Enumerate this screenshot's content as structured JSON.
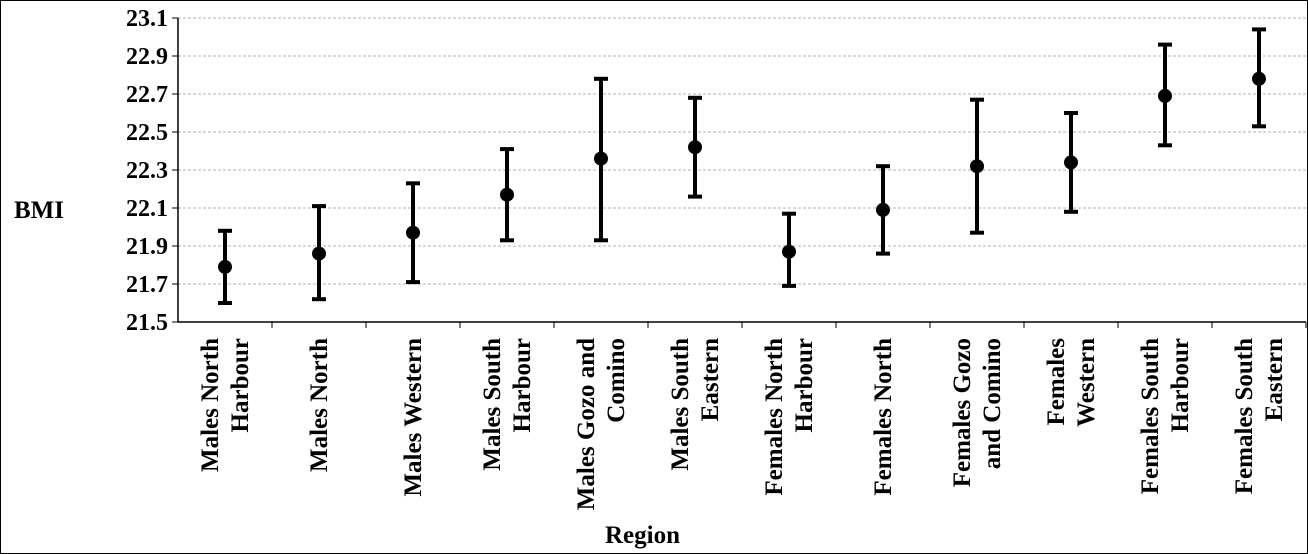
{
  "chart_data": {
    "type": "scatter",
    "subtype": "error-bar",
    "title": "",
    "xlabel": "Region",
    "ylabel": "BMI",
    "ylim": [
      21.5,
      23.1
    ],
    "yticks": [
      "21.5",
      "21.7",
      "21.9",
      "22.1",
      "22.3",
      "22.5",
      "22.7",
      "22.9",
      "23.1"
    ],
    "grid": true,
    "categories": [
      "Males North Harbour",
      "Males North",
      "Males Western",
      "Males South Harbour",
      "Males Gozo and Comino",
      "Males South Eastern",
      "Females North Harbour",
      "Females North",
      "Females Gozo and Comino",
      "Females Western",
      "Females South Harbour",
      "Females South Eastern"
    ],
    "category_label_lines": [
      [
        "Males North",
        "Harbour"
      ],
      [
        "Males North"
      ],
      [
        "Males Western"
      ],
      [
        "Males South",
        "Harbour"
      ],
      [
        "Males Gozo and",
        "Comino"
      ],
      [
        "Males South",
        "Eastern"
      ],
      [
        "Females North",
        "Harbour"
      ],
      [
        "Females North"
      ],
      [
        "Females Gozo",
        "and Comino"
      ],
      [
        "Females",
        "Western"
      ],
      [
        "Females South",
        "Harbour"
      ],
      [
        "Females South",
        "Eastern"
      ]
    ],
    "values": [
      21.79,
      21.86,
      21.97,
      22.17,
      22.36,
      22.42,
      21.87,
      22.09,
      22.32,
      22.34,
      22.69,
      22.78
    ],
    "lower": [
      21.6,
      21.62,
      21.71,
      21.93,
      21.93,
      22.16,
      21.69,
      21.86,
      21.97,
      22.08,
      22.43,
      22.53
    ],
    "upper": [
      21.98,
      22.11,
      22.23,
      22.41,
      22.78,
      22.68,
      22.07,
      22.32,
      22.67,
      22.6,
      22.96,
      23.04
    ],
    "colors": {
      "marker": "#000000",
      "grid": "#b0b0b0",
      "axis": "#000000"
    }
  }
}
